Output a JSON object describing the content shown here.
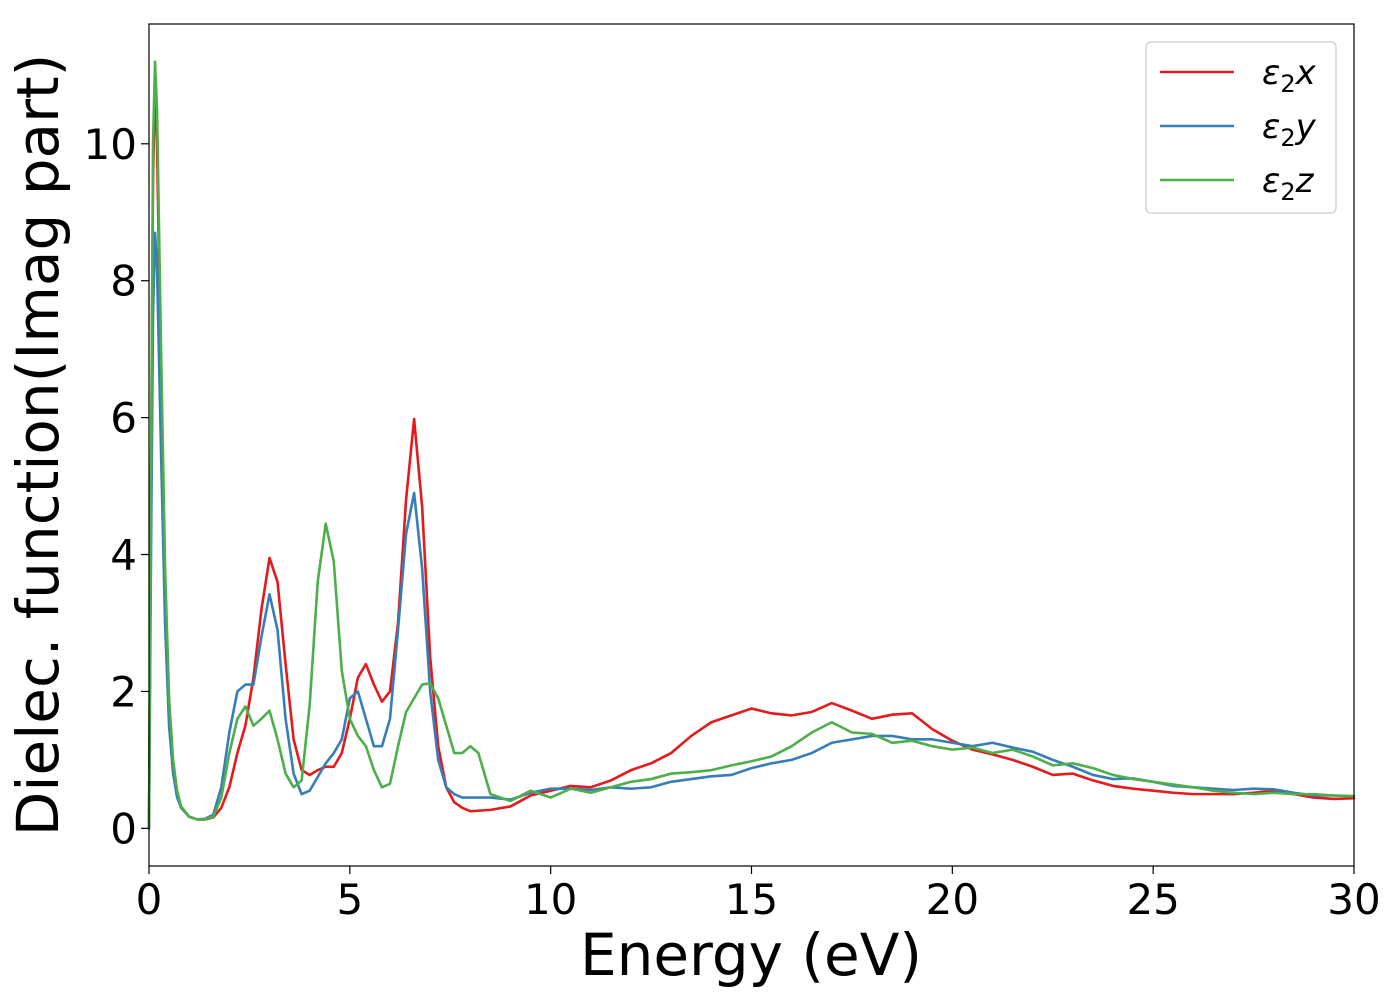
{
  "chart_data": {
    "type": "line",
    "title": "",
    "xlabel": "Energy (eV)",
    "ylabel": "Dielec. function(Imag part)",
    "xlim": [
      0,
      30
    ],
    "ylim": [
      -0.55,
      11.75
    ],
    "xticks": [
      0,
      5,
      10,
      15,
      20,
      25,
      30
    ],
    "yticks": [
      0,
      2,
      4,
      6,
      8,
      10
    ],
    "grid": false,
    "legend_position": "top-right",
    "series": [
      {
        "name": "ε₂x",
        "legend_base": "ε",
        "legend_sub": "2",
        "legend_var": "x",
        "color": "#e41a1c",
        "x": [
          0,
          0.05,
          0.1,
          0.15,
          0.2,
          0.3,
          0.4,
          0.5,
          0.6,
          0.7,
          0.8,
          1.0,
          1.2,
          1.4,
          1.6,
          1.8,
          2.0,
          2.2,
          2.4,
          2.6,
          2.8,
          3.0,
          3.2,
          3.4,
          3.6,
          3.8,
          4.0,
          4.2,
          4.4,
          4.6,
          4.8,
          5.0,
          5.2,
          5.4,
          5.6,
          5.8,
          6.0,
          6.2,
          6.4,
          6.6,
          6.8,
          7.0,
          7.2,
          7.4,
          7.6,
          7.8,
          8.0,
          8.5,
          9.0,
          9.5,
          10.0,
          10.5,
          11.0,
          11.5,
          12.0,
          12.5,
          13.0,
          13.5,
          14.0,
          14.5,
          15.0,
          15.5,
          16.0,
          16.5,
          17.0,
          17.5,
          18.0,
          18.5,
          19.0,
          19.5,
          20.0,
          20.5,
          21.0,
          21.5,
          22.0,
          22.5,
          23.0,
          23.5,
          24.0,
          24.5,
          25.0,
          25.5,
          26.0,
          26.5,
          27.0,
          27.5,
          28.0,
          28.5,
          29.0,
          29.5,
          30.0
        ],
        "y": [
          0,
          5.0,
          9.5,
          10.9,
          10.0,
          6.5,
          3.5,
          1.8,
          0.9,
          0.5,
          0.3,
          0.17,
          0.13,
          0.13,
          0.16,
          0.3,
          0.6,
          1.1,
          1.5,
          2.2,
          3.2,
          3.95,
          3.6,
          2.4,
          1.3,
          0.85,
          0.78,
          0.85,
          0.9,
          0.9,
          1.1,
          1.6,
          2.2,
          2.4,
          2.1,
          1.85,
          2.0,
          3.0,
          4.8,
          5.98,
          4.7,
          2.5,
          1.2,
          0.6,
          0.38,
          0.3,
          0.25,
          0.27,
          0.32,
          0.48,
          0.55,
          0.62,
          0.6,
          0.7,
          0.85,
          0.95,
          1.1,
          1.35,
          1.55,
          1.65,
          1.75,
          1.68,
          1.65,
          1.7,
          1.83,
          1.72,
          1.6,
          1.66,
          1.68,
          1.45,
          1.28,
          1.15,
          1.08,
          1.0,
          0.9,
          0.78,
          0.8,
          0.7,
          0.62,
          0.58,
          0.55,
          0.52,
          0.5,
          0.5,
          0.5,
          0.52,
          0.55,
          0.5,
          0.45,
          0.43,
          0.44
        ]
      },
      {
        "name": "ε₂y",
        "legend_base": "ε",
        "legend_sub": "2",
        "legend_var": "y",
        "color": "#377eb8",
        "x": [
          0,
          0.05,
          0.1,
          0.15,
          0.2,
          0.3,
          0.4,
          0.5,
          0.6,
          0.7,
          0.8,
          1.0,
          1.2,
          1.4,
          1.6,
          1.8,
          2.0,
          2.2,
          2.4,
          2.6,
          2.8,
          3.0,
          3.2,
          3.4,
          3.6,
          3.8,
          4.0,
          4.2,
          4.4,
          4.6,
          4.8,
          5.0,
          5.2,
          5.4,
          5.6,
          5.8,
          6.0,
          6.2,
          6.4,
          6.6,
          6.8,
          7.0,
          7.2,
          7.4,
          7.6,
          7.8,
          8.0,
          8.5,
          9.0,
          9.5,
          10.0,
          10.5,
          11.0,
          11.5,
          12.0,
          12.5,
          13.0,
          13.5,
          14.0,
          14.5,
          15.0,
          15.5,
          16.0,
          16.5,
          17.0,
          17.5,
          18.0,
          18.5,
          19.0,
          19.5,
          20.0,
          20.5,
          21.0,
          21.5,
          22.0,
          22.5,
          23.0,
          23.5,
          24.0,
          24.5,
          25.0,
          25.5,
          26.0,
          26.5,
          27.0,
          27.5,
          28.0,
          28.5,
          29.0,
          29.5,
          30.0
        ],
        "y": [
          0,
          4.0,
          7.5,
          8.7,
          8.2,
          5.5,
          3.0,
          1.5,
          0.8,
          0.45,
          0.3,
          0.17,
          0.13,
          0.14,
          0.2,
          0.6,
          1.4,
          2.0,
          2.1,
          2.1,
          2.8,
          3.42,
          2.9,
          1.6,
          0.8,
          0.5,
          0.55,
          0.75,
          0.95,
          1.1,
          1.3,
          1.9,
          2.0,
          1.6,
          1.2,
          1.2,
          1.6,
          2.9,
          4.3,
          4.9,
          3.8,
          2.0,
          1.0,
          0.6,
          0.5,
          0.45,
          0.45,
          0.45,
          0.42,
          0.52,
          0.58,
          0.58,
          0.56,
          0.6,
          0.58,
          0.6,
          0.68,
          0.72,
          0.76,
          0.78,
          0.88,
          0.95,
          1.0,
          1.1,
          1.25,
          1.3,
          1.35,
          1.35,
          1.3,
          1.3,
          1.25,
          1.2,
          1.25,
          1.18,
          1.12,
          1.0,
          0.9,
          0.78,
          0.72,
          0.73,
          0.68,
          0.62,
          0.6,
          0.58,
          0.56,
          0.58,
          0.57,
          0.52,
          0.48,
          0.48,
          0.47
        ]
      },
      {
        "name": "ε₂z",
        "legend_base": "ε",
        "legend_sub": "2",
        "legend_var": "z",
        "color": "#4daf4a",
        "x": [
          0,
          0.05,
          0.1,
          0.15,
          0.2,
          0.3,
          0.4,
          0.5,
          0.6,
          0.7,
          0.8,
          1.0,
          1.2,
          1.4,
          1.6,
          1.8,
          2.0,
          2.2,
          2.4,
          2.6,
          2.8,
          3.0,
          3.2,
          3.4,
          3.6,
          3.8,
          4.0,
          4.2,
          4.4,
          4.6,
          4.8,
          5.0,
          5.2,
          5.4,
          5.6,
          5.8,
          6.0,
          6.2,
          6.4,
          6.6,
          6.8,
          7.0,
          7.2,
          7.4,
          7.6,
          7.8,
          8.0,
          8.2,
          8.5,
          9.0,
          9.5,
          10.0,
          10.5,
          11.0,
          11.5,
          12.0,
          12.5,
          13.0,
          13.5,
          14.0,
          14.5,
          15.0,
          15.5,
          16.0,
          16.5,
          17.0,
          17.5,
          18.0,
          18.5,
          19.0,
          19.5,
          20.0,
          20.5,
          21.0,
          21.5,
          22.0,
          22.5,
          23.0,
          23.5,
          24.0,
          24.5,
          25.0,
          25.5,
          26.0,
          26.5,
          27.0,
          27.5,
          28.0,
          28.5,
          29.0,
          29.5,
          30.0
        ],
        "y": [
          0,
          5.0,
          10.0,
          11.2,
          10.5,
          7.0,
          3.8,
          1.9,
          1.0,
          0.55,
          0.32,
          0.17,
          0.13,
          0.13,
          0.17,
          0.45,
          1.1,
          1.6,
          1.78,
          1.5,
          1.6,
          1.72,
          1.3,
          0.8,
          0.6,
          0.7,
          1.8,
          3.6,
          4.45,
          3.9,
          2.3,
          1.6,
          1.35,
          1.2,
          0.85,
          0.6,
          0.65,
          1.2,
          1.7,
          1.9,
          2.1,
          2.12,
          1.9,
          1.5,
          1.1,
          1.1,
          1.2,
          1.1,
          0.5,
          0.4,
          0.55,
          0.45,
          0.58,
          0.52,
          0.6,
          0.68,
          0.72,
          0.8,
          0.82,
          0.85,
          0.92,
          0.98,
          1.05,
          1.2,
          1.4,
          1.55,
          1.4,
          1.38,
          1.25,
          1.28,
          1.2,
          1.15,
          1.18,
          1.1,
          1.15,
          1.05,
          0.92,
          0.95,
          0.88,
          0.78,
          0.72,
          0.68,
          0.64,
          0.6,
          0.55,
          0.52,
          0.5,
          0.52,
          0.5,
          0.5,
          0.48,
          0.47
        ]
      }
    ]
  }
}
